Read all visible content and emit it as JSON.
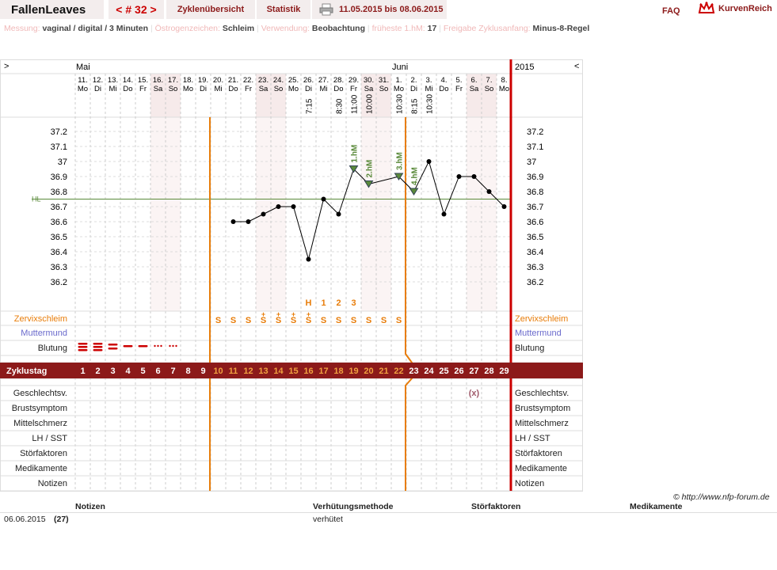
{
  "header": {
    "title": "FallenLeaves",
    "cycle_nav": "< # 32 >",
    "tab_overview": "Zyklenübersicht",
    "tab_stats": "Statistik",
    "date_range": "11.05.2015 bis 08.06.2015",
    "faq": "FAQ",
    "logo": "KurvenReich",
    "print_icon": "printer-icon"
  },
  "settings": [
    {
      "label": "Messung:",
      "value": "vaginal / digital / 3 Minuten"
    },
    {
      "label": "Östrogenzeichen:",
      "value": "Schleim"
    },
    {
      "label": "Verwendung:",
      "value": "Beobachtung"
    },
    {
      "label": "früheste 1.hM:",
      "value": "17"
    },
    {
      "label": "Freigabe Zyklusanfang:",
      "value": "Minus-8-Regel"
    }
  ],
  "chart": {
    "nav_prev": ">",
    "nav_next": "<",
    "month1": "Mai",
    "month2": "Juni",
    "year": "2015",
    "dates": [
      "11.",
      "12.",
      "13.",
      "14.",
      "15.",
      "16.",
      "17.",
      "18.",
      "19.",
      "20.",
      "21.",
      "22.",
      "23.",
      "24.",
      "25.",
      "26.",
      "27.",
      "28.",
      "29.",
      "30.",
      "31.",
      "1.",
      "2.",
      "3.",
      "4.",
      "5.",
      "6.",
      "7.",
      "8."
    ],
    "weekdays": [
      "Mo",
      "Di",
      "Mi",
      "Do",
      "Fr",
      "Sa",
      "So",
      "Mo",
      "Di",
      "Mi",
      "Do",
      "Fr",
      "Sa",
      "So",
      "Mo",
      "Di",
      "Mi",
      "Do",
      "Fr",
      "Sa",
      "So",
      "Mo",
      "Di",
      "Mi",
      "Do",
      "Fr",
      "Sa",
      "So",
      "Mo"
    ],
    "weekend": [
      5,
      6,
      12,
      13,
      19,
      20,
      26,
      27
    ],
    "times": {
      "15": "7:15",
      "17": "8:30",
      "18": "11:00",
      "19": "10:00",
      "21": "10:30",
      "22": "8:15",
      "23": "10:30"
    },
    "hl_label": "HL",
    "y_ticks": [
      "37.2",
      "37.1",
      "37",
      "36.9",
      "36.8",
      "36.7",
      "36.6",
      "36.5",
      "36.4",
      "36.3",
      "36.2"
    ],
    "temps": [
      null,
      null,
      null,
      null,
      null,
      null,
      null,
      null,
      null,
      null,
      36.6,
      36.6,
      36.65,
      36.7,
      36.7,
      36.35,
      36.75,
      36.65,
      36.95,
      36.85,
      null,
      36.9,
      36.8,
      37.0,
      36.65,
      36.9,
      36.9,
      36.8,
      36.7
    ],
    "hm_markers": [
      {
        "day": 18,
        "label": "1.hM"
      },
      {
        "day": 19,
        "label": "2.hM"
      },
      {
        "day": 21,
        "label": "3.hM"
      },
      {
        "day": 22,
        "label": "4.hM"
      }
    ],
    "hl_temp": 36.75,
    "peak_labels": {
      "15": "H",
      "16": "1",
      "17": "2",
      "18": "3"
    },
    "mucus": {
      "9": "S",
      "10": "S",
      "11": "S",
      "12": "S+",
      "13": "S+",
      "14": "S+",
      "15": "S+",
      "16": "S",
      "17": "S",
      "18": "S",
      "19": "S",
      "20": "S",
      "21": "S"
    },
    "bleeding": [
      3,
      3,
      2,
      1,
      1,
      0.5,
      0.5
    ],
    "rows": {
      "mucus": "Zervixschleim",
      "cervix": "Muttermund",
      "bleeding": "Blutung",
      "cycle_day": "Zyklustag",
      "sex": "Geschlechtsv.",
      "breast": "Brustsymptom",
      "midpain": "Mittelschmerz",
      "lh": "LH / SST",
      "disturb": "Störfaktoren",
      "meds": "Medikamente",
      "notes": "Notizen"
    },
    "cycle_days": [
      "1",
      "2",
      "3",
      "4",
      "5",
      "6",
      "7",
      "8",
      "9",
      "10",
      "11",
      "12",
      "13",
      "14",
      "15",
      "16",
      "17",
      "18",
      "19",
      "20",
      "21",
      "22",
      "23",
      "24",
      "25",
      "26",
      "27",
      "28",
      "29"
    ],
    "sex_mark": {
      "day": 26,
      "text": "(x)"
    }
  },
  "copyright": "© http://www.nfp-forum.de",
  "notes_table": {
    "headers": [
      "Notizen",
      "Verhütungsmethode",
      "Störfaktoren",
      "Medikamente"
    ],
    "date": "06.06.2015",
    "day": "(27)",
    "method": "verhütet"
  },
  "colors": {
    "accent": "#8c1a1a",
    "orange": "#e87d0a",
    "green": "#5a8a3a",
    "red": "#cc0000",
    "blue": "#6a6acc"
  }
}
